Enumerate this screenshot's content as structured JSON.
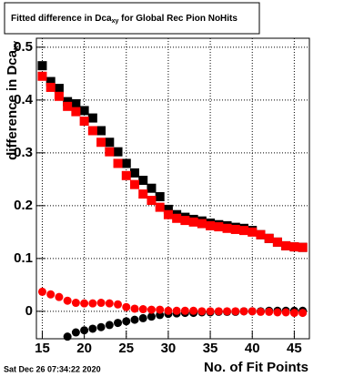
{
  "chart_data": {
    "type": "scatter",
    "title": "Fitted difference in Dca",
    "title_subscript": "xy",
    "title_rest": " for Global Rec Pion NoHits",
    "y_label": "difference in Dca",
    "y_label_subscript": "xy",
    "x_label": "No. of Fit Points",
    "timestamp": "Sat Dec 26 07:34:22 2020",
    "x": [
      15,
      16,
      17,
      18,
      19,
      20,
      21,
      22,
      23,
      24,
      25,
      26,
      27,
      28,
      29,
      30,
      31,
      32,
      33,
      34,
      35,
      36,
      37,
      38,
      39,
      40,
      41,
      42,
      43,
      44,
      45,
      46
    ],
    "series": [
      {
        "marker": "square",
        "color": "#000000",
        "values": [
          0.465,
          0.435,
          0.422,
          0.397,
          0.393,
          0.38,
          0.366,
          0.342,
          0.32,
          0.302,
          0.28,
          0.262,
          0.248,
          0.233,
          0.217,
          0.193,
          0.183,
          0.178,
          0.174,
          0.171,
          0.167,
          0.164,
          0.162,
          0.159,
          0.157,
          0.153,
          0.145,
          0.138,
          0.131,
          0.124,
          0.122,
          0.121
        ]
      },
      {
        "marker": "square",
        "color": "#ff0000",
        "values": [
          0.445,
          0.424,
          0.407,
          0.388,
          0.378,
          0.36,
          0.342,
          0.32,
          0.302,
          0.28,
          0.257,
          0.24,
          0.222,
          0.21,
          0.197,
          0.183,
          0.176,
          0.172,
          0.169,
          0.166,
          0.162,
          0.16,
          0.157,
          0.155,
          0.153,
          0.15,
          0.145,
          0.138,
          0.131,
          0.124,
          0.122,
          0.121
        ]
      },
      {
        "marker": "circle",
        "color": "#000000",
        "values": [
          null,
          null,
          null,
          -0.048,
          -0.04,
          -0.036,
          -0.033,
          -0.03,
          -0.026,
          -0.022,
          -0.019,
          -0.016,
          -0.013,
          -0.01,
          -0.007,
          -0.005,
          -0.004,
          -0.003,
          -0.003,
          -0.002,
          -0.002,
          -0.001,
          -0.001,
          -0.001,
          0,
          0,
          0,
          0.001,
          0.001,
          0.001,
          0.001,
          0.001
        ]
      },
      {
        "marker": "circle",
        "color": "#ff0000",
        "values": [
          0.037,
          0.032,
          0.027,
          0.02,
          0.016,
          0.015,
          0.015,
          0.016,
          0.015,
          0.013,
          0.008,
          0.005,
          0.004,
          0.003,
          0.003,
          0.001,
          0.001,
          0.001,
          0.001,
          0,
          0,
          0,
          0,
          0,
          0,
          0,
          -0.001,
          -0.001,
          -0.002,
          -0.002,
          -0.003,
          -0.003
        ]
      }
    ],
    "xlim": [
      14.3,
      46.8
    ],
    "ylim": [
      -0.052,
      0.517
    ],
    "xticks": [
      15,
      20,
      25,
      30,
      35,
      40,
      45
    ],
    "yticks": [
      0,
      0.1,
      0.2,
      0.3,
      0.4,
      0.5
    ],
    "grid": true
  }
}
